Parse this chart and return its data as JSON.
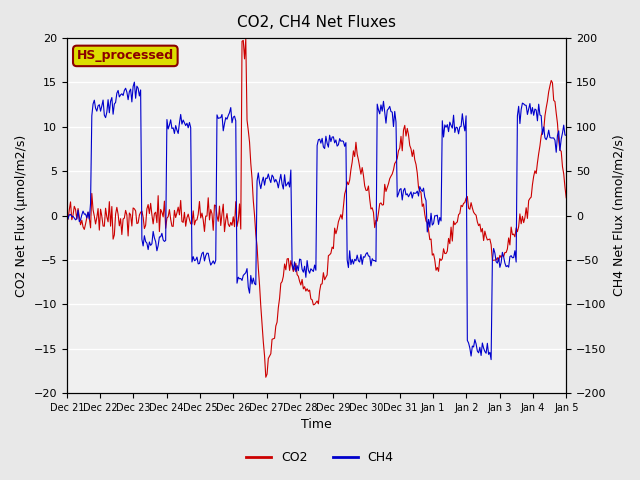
{
  "title": "CO2, CH4 Net Fluxes",
  "xlabel": "Time",
  "ylabel_left": "CO2 Net Flux (μmol/m2/s)",
  "ylabel_right": "CH4 Net Flux (nmol/m2/s)",
  "ylim_left": [
    -20,
    20
  ],
  "ylim_right": [
    -200,
    200
  ],
  "legend_label": "HS_processed",
  "series_labels": [
    "CO2",
    "CH4"
  ],
  "co2_color": "#cc0000",
  "ch4_color": "#0000cc",
  "bg_color": "#e8e8e8",
  "plot_bg_color": "#f0f0f0",
  "legend_box_color": "#dddd00",
  "legend_text_color": "#8b0000",
  "figsize": [
    6.4,
    4.8
  ],
  "dpi": 100,
  "xtick_labels": [
    "Dec 21",
    "Dec 22",
    "Dec 23",
    "Dec 24",
    "Dec 25",
    "Dec 26",
    "Dec 27",
    "Dec 28",
    "Dec 29",
    "Dec 30",
    "Dec 31",
    "Jan 1",
    "Jan 2",
    "Jan 3",
    "Jan 4",
    "Jan 5"
  ],
  "n_points": 400
}
